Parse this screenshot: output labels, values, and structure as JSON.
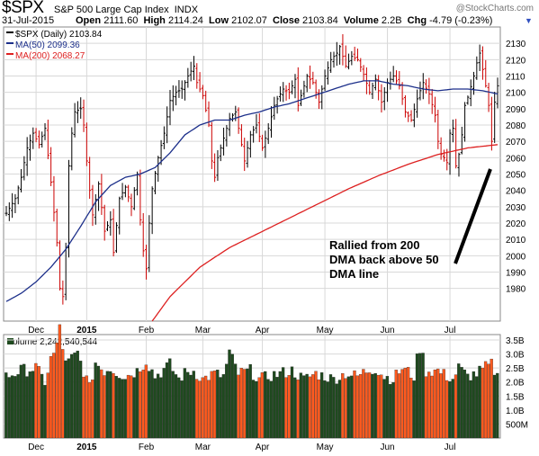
{
  "header": {
    "ticker": "$SPX",
    "name": "S&P 500 Large Cap Index",
    "exchange": "INDX",
    "copyright": "@StockCharts.com",
    "date": "31-Jul-2015",
    "open_label": "Open",
    "open": "2111.60",
    "high_label": "High",
    "high": "2114.24",
    "low_label": "Low",
    "low": "2102.07",
    "close_label": "Close",
    "close": "2103.84",
    "volume_label": "Volume",
    "volume": "2.2B",
    "chg_label": "Chg",
    "chg": "-4.79 (-0.23%)"
  },
  "colors": {
    "up": "#000000",
    "down": "#cc0000",
    "ma50": "#1c2f8a",
    "ma200": "#dd2020",
    "vol_up": "#1f4a1f",
    "vol_down": "#ff5a1f",
    "grid": "#d8d8d8",
    "frame": "#888888"
  },
  "chart_data": [
    {
      "type": "line",
      "legend": [
        {
          "label": "$SPX (Daily) 2103.84",
          "color": "#000000"
        },
        {
          "label": "MA(50) 2099.36",
          "color": "#1c2f8a"
        },
        {
          "label": "MA(200) 2068.27",
          "color": "#dd2020"
        }
      ],
      "ylim": [
        1960,
        2140
      ],
      "yticks": [
        1980,
        1990,
        2000,
        2010,
        2020,
        2030,
        2040,
        2050,
        2060,
        2070,
        2080,
        2090,
        2100,
        2110,
        2120,
        2130
      ],
      "x_labels": [
        "Dec",
        "2015",
        "Feb",
        "Mar",
        "Apr",
        "May",
        "Jun",
        "Jul"
      ],
      "x_label_days": [
        10,
        27,
        47,
        66,
        86,
        107,
        128,
        149
      ],
      "n_days": 166,
      "daily_close_key": [
        [
          0,
          2026
        ],
        [
          3,
          2035
        ],
        [
          5,
          2048
        ],
        [
          7,
          2066
        ],
        [
          9,
          2075
        ],
        [
          11,
          2068
        ],
        [
          13,
          2078
        ],
        [
          15,
          2045
        ],
        [
          17,
          2008
        ],
        [
          18,
          1980
        ],
        [
          19,
          1975
        ],
        [
          20,
          2005
        ],
        [
          21,
          2055
        ],
        [
          22,
          2075
        ],
        [
          23,
          2088
        ],
        [
          25,
          2090
        ],
        [
          26,
          2080
        ],
        [
          27,
          2058
        ],
        [
          28,
          2040
        ],
        [
          29,
          2025
        ],
        [
          31,
          2044
        ],
        [
          33,
          2015
        ],
        [
          35,
          2022
        ],
        [
          36,
          2002
        ],
        [
          38,
          2035
        ],
        [
          40,
          2042
        ],
        [
          42,
          2030
        ],
        [
          44,
          2050
        ],
        [
          45,
          2022
        ],
        [
          46,
          2003
        ],
        [
          47,
          1992
        ],
        [
          48,
          2020
        ],
        [
          49,
          2041
        ],
        [
          51,
          2060
        ],
        [
          53,
          2075
        ],
        [
          55,
          2095
        ],
        [
          57,
          2100
        ],
        [
          59,
          2102
        ],
        [
          61,
          2110
        ],
        [
          63,
          2116
        ],
        [
          64,
          2106
        ],
        [
          66,
          2098
        ],
        [
          68,
          2080
        ],
        [
          69,
          2058
        ],
        [
          70,
          2048
        ],
        [
          71,
          2060
        ],
        [
          73,
          2072
        ],
        [
          75,
          2084
        ],
        [
          77,
          2088
        ],
        [
          79,
          2068
        ],
        [
          80,
          2058
        ],
        [
          82,
          2074
        ],
        [
          84,
          2080
        ],
        [
          86,
          2066
        ],
        [
          88,
          2078
        ],
        [
          90,
          2092
        ],
        [
          91,
          2096
        ],
        [
          93,
          2102
        ],
        [
          95,
          2100
        ],
        [
          97,
          2108
        ],
        [
          98,
          2092
        ],
        [
          99,
          2098
        ],
        [
          101,
          2110
        ],
        [
          103,
          2106
        ],
        [
          105,
          2094
        ],
        [
          107,
          2110
        ],
        [
          109,
          2120
        ],
        [
          111,
          2124
        ],
        [
          112,
          2128
        ],
        [
          114,
          2116
        ],
        [
          116,
          2122
        ],
        [
          118,
          2120
        ],
        [
          120,
          2111
        ],
        [
          122,
          2100
        ],
        [
          124,
          2108
        ],
        [
          126,
          2094
        ],
        [
          128,
          2106
        ],
        [
          130,
          2110
        ],
        [
          132,
          2104
        ],
        [
          134,
          2088
        ],
        [
          136,
          2083
        ],
        [
          138,
          2096
        ],
        [
          140,
          2106
        ],
        [
          142,
          2099
        ],
        [
          144,
          2086
        ],
        [
          145,
          2070
        ],
        [
          146,
          2062
        ],
        [
          147,
          2060
        ],
        [
          148,
          2057
        ],
        [
          149,
          2075
        ],
        [
          150,
          2078
        ],
        [
          151,
          2055
        ],
        [
          152,
          2062
        ],
        [
          153,
          2074
        ],
        [
          154,
          2092
        ],
        [
          155,
          2097
        ],
        [
          157,
          2110
        ],
        [
          158,
          2118
        ],
        [
          159,
          2124
        ],
        [
          160,
          2114
        ],
        [
          161,
          2104
        ],
        [
          162,
          2092
        ],
        [
          163,
          2070
        ],
        [
          164,
          2094
        ],
        [
          165,
          2104
        ]
      ],
      "ma50_key": [
        [
          0,
          1972
        ],
        [
          5,
          1977
        ],
        [
          10,
          1984
        ],
        [
          15,
          1993
        ],
        [
          20,
          2004
        ],
        [
          25,
          2018
        ],
        [
          30,
          2033
        ],
        [
          35,
          2043
        ],
        [
          40,
          2048
        ],
        [
          45,
          2050
        ],
        [
          50,
          2054
        ],
        [
          55,
          2063
        ],
        [
          60,
          2074
        ],
        [
          65,
          2080
        ],
        [
          70,
          2083
        ],
        [
          75,
          2083
        ],
        [
          80,
          2086
        ],
        [
          85,
          2088
        ],
        [
          90,
          2091
        ],
        [
          95,
          2093
        ],
        [
          100,
          2096
        ],
        [
          105,
          2099
        ],
        [
          110,
          2102
        ],
        [
          115,
          2105
        ],
        [
          120,
          2107
        ],
        [
          125,
          2107
        ],
        [
          130,
          2105
        ],
        [
          135,
          2104
        ],
        [
          140,
          2102
        ],
        [
          145,
          2101
        ],
        [
          150,
          2102
        ],
        [
          155,
          2102
        ],
        [
          160,
          2101
        ],
        [
          165,
          2099
        ]
      ],
      "ma200_key": [
        [
          47,
          1955
        ],
        [
          55,
          1975
        ],
        [
          65,
          1993
        ],
        [
          75,
          2005
        ],
        [
          85,
          2014
        ],
        [
          95,
          2023
        ],
        [
          105,
          2032
        ],
        [
          115,
          2041
        ],
        [
          125,
          2049
        ],
        [
          135,
          2056
        ],
        [
          145,
          2062
        ],
        [
          155,
          2066
        ],
        [
          165,
          2068
        ]
      ],
      "annotation": "Rallied from 200 DMA back above 50 DMA line"
    },
    {
      "type": "bar",
      "title": "Volume 2,242,540,544",
      "ylim": [
        0,
        3.5
      ],
      "y_ticklabels": [
        "3.5B",
        "3.0B",
        "2.5B",
        "2.0B",
        "1.5B",
        "1.0B",
        "500M"
      ],
      "y_tickvalues": [
        3.5,
        3.0,
        2.5,
        2.0,
        1.5,
        1.0,
        0.5
      ],
      "x_labels": [
        "Dec",
        "2015",
        "Feb",
        "Mar",
        "Apr",
        "May",
        "Jun",
        "Jul"
      ],
      "volume_key_billions": [
        [
          0,
          2.2
        ],
        [
          5,
          2.4
        ],
        [
          10,
          2.5
        ],
        [
          13,
          2.0
        ],
        [
          15,
          2.8
        ],
        [
          17,
          3.2
        ],
        [
          18,
          4.0
        ],
        [
          20,
          2.6
        ],
        [
          24,
          3.0
        ],
        [
          28,
          1.8
        ],
        [
          30,
          2.7
        ],
        [
          33,
          2.4
        ],
        [
          35,
          2.5
        ],
        [
          38,
          2.3
        ],
        [
          40,
          2.2
        ],
        [
          44,
          2.4
        ],
        [
          47,
          2.8
        ],
        [
          50,
          2.2
        ],
        [
          55,
          2.6
        ],
        [
          58,
          2.1
        ],
        [
          60,
          2.3
        ],
        [
          63,
          2.4
        ],
        [
          66,
          2.1
        ],
        [
          70,
          2.3
        ],
        [
          73,
          2.2
        ],
        [
          75,
          3.0
        ],
        [
          78,
          2.3
        ],
        [
          82,
          2.4
        ],
        [
          85,
          2.1
        ],
        [
          88,
          2.2
        ],
        [
          92,
          2.3
        ],
        [
          96,
          2.4
        ],
        [
          100,
          2.1
        ],
        [
          104,
          2.3
        ],
        [
          107,
          2.2
        ],
        [
          110,
          2.1
        ],
        [
          114,
          2.3
        ],
        [
          118,
          2.2
        ],
        [
          121,
          2.4
        ],
        [
          124,
          2.5
        ],
        [
          127,
          2.2
        ],
        [
          130,
          2.1
        ],
        [
          133,
          2.5
        ],
        [
          137,
          2.2
        ],
        [
          139,
          3.3
        ],
        [
          141,
          2.4
        ],
        [
          145,
          2.4
        ],
        [
          148,
          2.2
        ],
        [
          150,
          2.1
        ],
        [
          152,
          2.5
        ],
        [
          155,
          2.2
        ],
        [
          158,
          2.3
        ],
        [
          161,
          2.5
        ],
        [
          163,
          2.6
        ],
        [
          165,
          2.2
        ]
      ]
    }
  ]
}
